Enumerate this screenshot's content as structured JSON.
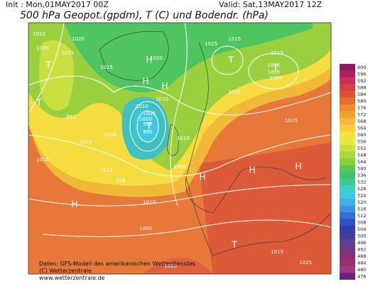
{
  "header": {
    "init": "Init : Mon,01MAY2017 00Z",
    "valid": "Valid: Sat,13MAY2017 12Z",
    "title": "500 hPa Geopot.(gpdm), T (C) und Bodendr. (hPa)"
  },
  "footer": {
    "line1": "Daten: GFS-Modell des amerikanischen Wetterdienstes",
    "line2": "(C) Wetterzentrale",
    "line3": "www.wetterzentrale.de"
  },
  "map": {
    "labels": [
      "1010",
      "1005",
      "1020",
      "1025",
      "1015",
      "1010",
      "1005",
      "1000",
      "1010",
      "1015",
      "1010",
      "1005",
      "995",
      "990",
      "1010",
      "1015",
      "1020",
      "1025",
      "1000",
      "1005",
      "1010",
      "1015",
      "1020",
      "1015",
      "1010",
      "1005",
      "1000",
      "1015",
      "1020",
      "1025",
      "1015",
      "552",
      "558"
    ],
    "symbols": [
      "T",
      "T",
      "H",
      "H",
      "H",
      "T",
      "T",
      "T",
      "H",
      "H",
      "H",
      "H",
      "T"
    ]
  },
  "colorbar": {
    "levels": [
      "600",
      "596",
      "592",
      "588",
      "584",
      "580",
      "576",
      "572",
      "568",
      "564",
      "560",
      "556",
      "552",
      "548",
      "544",
      "540",
      "536",
      "532",
      "528",
      "524",
      "520",
      "516",
      "512",
      "508",
      "504",
      "500",
      "496",
      "492",
      "488",
      "484",
      "480",
      "476"
    ],
    "colors": [
      "#8b1a6b",
      "#b0205f",
      "#c8305a",
      "#d84040",
      "#e05030",
      "#e86a30",
      "#ee8a30",
      "#f2a030",
      "#f5b838",
      "#f7cc40",
      "#f5e040",
      "#e8e840",
      "#c8e040",
      "#a8d840",
      "#88d040",
      "#58c850",
      "#40c070",
      "#40c898",
      "#40d0c0",
      "#40c8e0",
      "#40b0e8",
      "#4090e0",
      "#3070d0",
      "#3050c0",
      "#3040a8",
      "#404098",
      "#604090",
      "#703880",
      "#883070",
      "#983070",
      "#a03880",
      "#6a2080"
    ]
  }
}
